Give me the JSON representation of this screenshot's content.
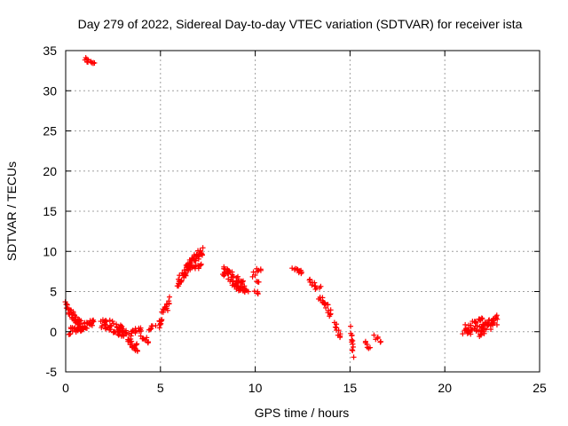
{
  "chart_data": {
    "type": "scatter",
    "title": "Day 279 of 2022, Sidereal Day-to-day VTEC variation (SDTVAR) for receiver ista",
    "xlabel": "GPS time / hours",
    "ylabel": "SDTVAR / TECUs",
    "xlim": [
      0,
      25
    ],
    "ylim": [
      -5,
      35
    ],
    "xticks": [
      0,
      5,
      10,
      15,
      20,
      25
    ],
    "yticks": [
      -5,
      0,
      5,
      10,
      15,
      20,
      25,
      30,
      35
    ],
    "grid": true,
    "marker": "+",
    "color": "#ff0000",
    "segments": [
      {
        "x0": 0.0,
        "x1": 0.9,
        "y0": 3.2,
        "y1": 0.5,
        "spread": 1.2,
        "n": 40
      },
      {
        "x0": 0.2,
        "x1": 1.5,
        "y0": 0.0,
        "y1": 1.2,
        "spread": 0.9,
        "n": 40
      },
      {
        "x0": 1.0,
        "x1": 1.5,
        "y0": 34.0,
        "y1": 33.3,
        "spread": 0.4,
        "n": 12
      },
      {
        "x0": 1.9,
        "x1": 3.0,
        "y0": 1.2,
        "y1": 0.0,
        "spread": 1.4,
        "n": 45
      },
      {
        "x0": 2.8,
        "x1": 3.8,
        "y0": 0.5,
        "y1": -2.2,
        "spread": 1.2,
        "n": 40
      },
      {
        "x0": 3.5,
        "x1": 4.0,
        "y0": 0.0,
        "y1": 0.5,
        "spread": 0.9,
        "n": 12
      },
      {
        "x0": 4.0,
        "x1": 4.4,
        "y0": -0.5,
        "y1": -1.3,
        "spread": 0.6,
        "n": 10
      },
      {
        "x0": 4.4,
        "x1": 4.7,
        "y0": 0.3,
        "y1": 0.8,
        "spread": 0.4,
        "n": 6
      },
      {
        "x0": 4.9,
        "x1": 5.5,
        "y0": 1.0,
        "y1": 3.8,
        "spread": 1.2,
        "n": 25
      },
      {
        "x0": 5.9,
        "x1": 6.6,
        "y0": 6.0,
        "y1": 8.5,
        "spread": 1.2,
        "n": 35
      },
      {
        "x0": 6.4,
        "x1": 7.2,
        "y0": 8.0,
        "y1": 10.0,
        "spread": 1.0,
        "n": 40
      },
      {
        "x0": 6.6,
        "x1": 7.2,
        "y0": 7.8,
        "y1": 8.2,
        "spread": 0.6,
        "n": 12
      },
      {
        "x0": 8.3,
        "x1": 9.4,
        "y0": 7.5,
        "y1": 5.5,
        "spread": 1.5,
        "n": 50
      },
      {
        "x0": 9.0,
        "x1": 9.6,
        "y0": 5.5,
        "y1": 5.0,
        "spread": 0.6,
        "n": 15
      },
      {
        "x0": 9.9,
        "x1": 10.3,
        "y0": 7.0,
        "y1": 8.0,
        "spread": 0.6,
        "n": 8
      },
      {
        "x0": 10.0,
        "x1": 10.2,
        "y0": 5.0,
        "y1": 4.8,
        "spread": 0.3,
        "n": 4
      },
      {
        "x0": 10.1,
        "x1": 10.2,
        "y0": 6.2,
        "y1": 6.2,
        "spread": 0.3,
        "n": 3
      },
      {
        "x0": 12.0,
        "x1": 12.5,
        "y0": 7.9,
        "y1": 7.2,
        "spread": 0.6,
        "n": 10
      },
      {
        "x0": 12.8,
        "x1": 13.4,
        "y0": 6.5,
        "y1": 5.3,
        "spread": 0.8,
        "n": 12
      },
      {
        "x0": 13.4,
        "x1": 14.0,
        "y0": 4.5,
        "y1": 2.2,
        "spread": 1.0,
        "n": 20
      },
      {
        "x0": 14.2,
        "x1": 14.5,
        "y0": 0.8,
        "y1": -0.6,
        "spread": 0.7,
        "n": 10
      },
      {
        "x0": 15.0,
        "x1": 15.2,
        "y0": 0.3,
        "y1": -2.8,
        "spread": 0.8,
        "n": 12
      },
      {
        "x0": 15.8,
        "x1": 16.0,
        "y0": -1.2,
        "y1": -2.0,
        "spread": 0.6,
        "n": 6
      },
      {
        "x0": 16.3,
        "x1": 16.6,
        "y0": -0.6,
        "y1": -1.2,
        "spread": 0.6,
        "n": 6
      },
      {
        "x0": 21.0,
        "x1": 22.0,
        "y0": 0.2,
        "y1": 1.0,
        "spread": 1.6,
        "n": 40
      },
      {
        "x0": 21.8,
        "x1": 22.8,
        "y0": 0.0,
        "y1": 1.5,
        "spread": 1.4,
        "n": 40
      }
    ]
  }
}
